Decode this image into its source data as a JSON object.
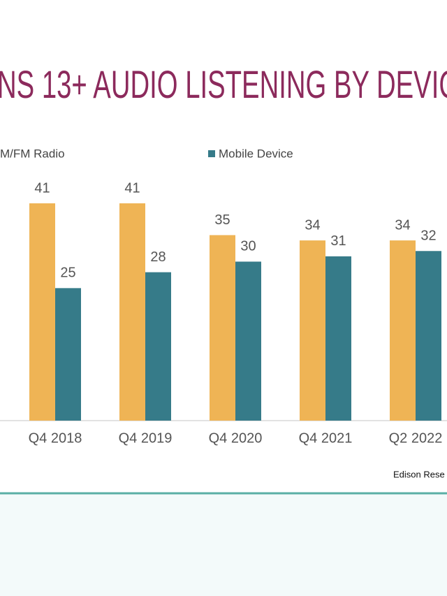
{
  "chart_data": {
    "type": "bar",
    "title": "NS 13+ AUDIO LISTENING BY DEVIC",
    "categories": [
      "Q4 2018",
      "Q4 2019",
      "Q4 2020",
      "Q4 2021",
      "Q2 2022"
    ],
    "series": [
      {
        "name": "M/FM Radio",
        "color": "#efb455",
        "values": [
          41,
          41,
          35,
          34,
          34
        ]
      },
      {
        "name": "Mobile Device",
        "color": "#367b89",
        "values": [
          25,
          28,
          30,
          31,
          32
        ]
      }
    ],
    "source": "Edison Rese"
  }
}
